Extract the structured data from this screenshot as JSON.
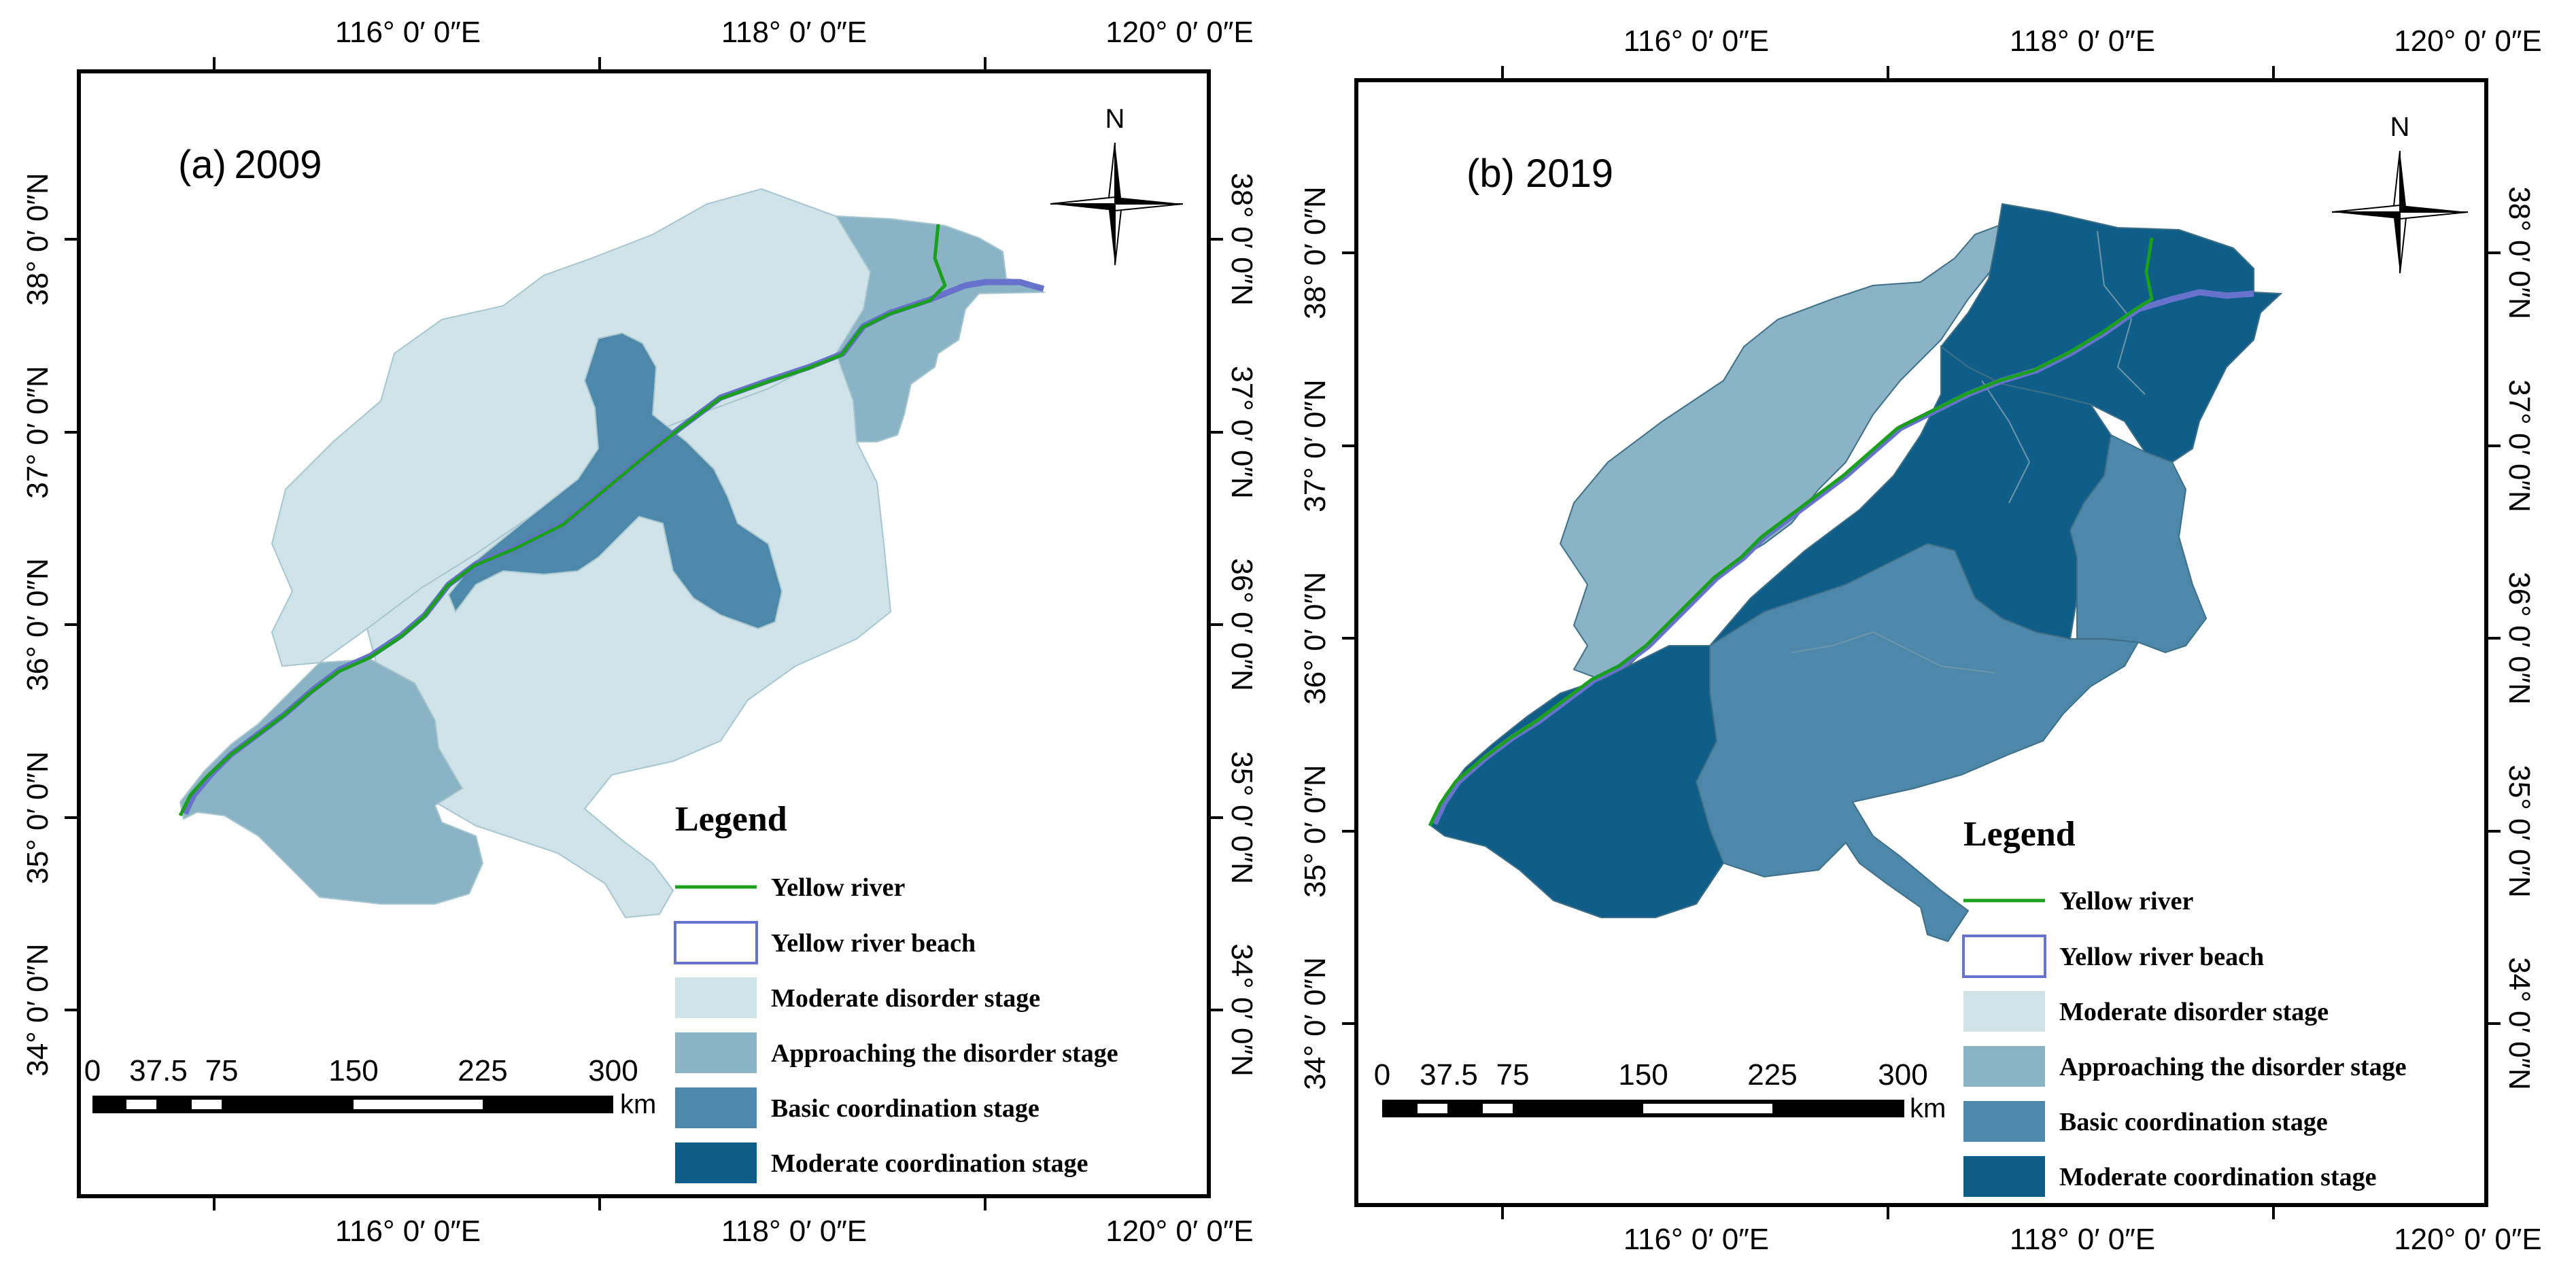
{
  "coordinate_labels": {
    "lon": [
      "116°  0′ 0″E",
      "118°  0′ 0″E",
      "120°  0′ 0″E"
    ],
    "lat": [
      "38°  0′ 0″N",
      "37°  0′ 0″N",
      "36°  0′ 0″N",
      "35°  0′ 0″N",
      "34°  0′ 0″N"
    ]
  },
  "panels": [
    {
      "title": "(a) 2009",
      "year": 2009,
      "regions": {
        "northwest": "moderate_disorder",
        "northeast": "approaching_disorder",
        "center": "basic_coordination",
        "southwest": "approaching_disorder",
        "south": "moderate_disorder"
      }
    },
    {
      "title": "(b)  2019",
      "year": 2019,
      "regions": {
        "northwest": "approaching_disorder",
        "northeast": "moderate_coordination",
        "center": "moderate_coordination",
        "southwest": "moderate_coordination",
        "south": "basic_coordination",
        "east": "basic_coordination"
      }
    }
  ],
  "north_arrow": {
    "label": "N"
  },
  "legend": {
    "title": "Legend",
    "items": [
      {
        "label": "Yellow river",
        "kind": "line",
        "color": "#1aa01a"
      },
      {
        "label": "Yellow river beach",
        "kind": "outline",
        "color": "#6672cc"
      },
      {
        "label": "Moderate disorder stage",
        "kind": "fill",
        "color": "#cfe3e8"
      },
      {
        "label": "Approaching the disorder stage",
        "kind": "fill",
        "color": "#8ab3c6"
      },
      {
        "label": "Basic coordination stage",
        "kind": "fill",
        "color": "#4d88aa"
      },
      {
        "label": "Moderate coordination stage",
        "kind": "fill",
        "color": "#0f5e89"
      }
    ]
  },
  "scale_bar": {
    "ticks": [
      "0",
      "37.5",
      "75",
      "150",
      "225",
      "300"
    ],
    "unit": "km"
  },
  "colors": {
    "moderate_disorder": "#cfe3e8",
    "approaching_disorder": "#8ab3c6",
    "basic_coordination": "#4d88aa",
    "moderate_coordination": "#0f5e89",
    "river": "#1aa01a",
    "beach": "#6672cc"
  }
}
